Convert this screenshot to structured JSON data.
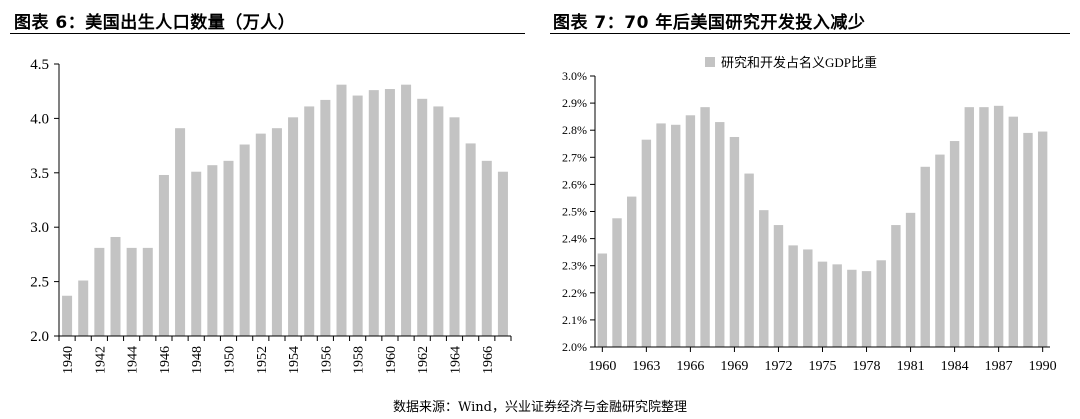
{
  "left_panel": {
    "title": "图表 6：美国出生人口数量（万人）"
  },
  "right_panel": {
    "title": "图表 7：70 年后美国研究开发投入减少"
  },
  "source_note": "数据来源：Wind，兴业证券经济与金融研究院整理",
  "bar_color": "#c3c3c3",
  "chart_data": [
    {
      "type": "bar",
      "title": "",
      "xlabel": "",
      "ylabel": "",
      "ylim": [
        2.0,
        4.5
      ],
      "yticks": [
        "2.0",
        "2.5",
        "3.0",
        "3.5",
        "4.0",
        "4.5"
      ],
      "x": [
        1940,
        1941,
        1942,
        1943,
        1944,
        1945,
        1946,
        1947,
        1948,
        1949,
        1950,
        1951,
        1952,
        1953,
        1954,
        1955,
        1956,
        1957,
        1958,
        1959,
        1960,
        1961,
        1962,
        1963,
        1964,
        1965,
        1966,
        1967
      ],
      "x_tick_labels": [
        "1940",
        "1942",
        "1944",
        "1946",
        "1948",
        "1950",
        "1952",
        "1954",
        "1956",
        "1958",
        "1960",
        "1962",
        "1964",
        "1966"
      ],
      "values": [
        2.37,
        2.51,
        2.81,
        2.91,
        2.81,
        2.81,
        3.48,
        3.91,
        3.51,
        3.57,
        3.61,
        3.76,
        3.86,
        3.91,
        4.01,
        4.11,
        4.17,
        4.31,
        4.21,
        4.26,
        4.27,
        4.31,
        4.18,
        4.11,
        4.01,
        3.77,
        3.61,
        3.51
      ],
      "grid": false,
      "legend": null
    },
    {
      "type": "bar",
      "title": "",
      "xlabel": "",
      "ylabel": "",
      "ylim": [
        2.0,
        3.0
      ],
      "yticks": [
        "2.0%",
        "2.1%",
        "2.2%",
        "2.3%",
        "2.4%",
        "2.5%",
        "2.6%",
        "2.7%",
        "2.8%",
        "2.9%",
        "3.0%"
      ],
      "x": [
        1960,
        1961,
        1962,
        1963,
        1964,
        1965,
        1966,
        1967,
        1968,
        1969,
        1970,
        1971,
        1972,
        1973,
        1974,
        1975,
        1976,
        1977,
        1978,
        1979,
        1980,
        1981,
        1982,
        1983,
        1984,
        1985,
        1986,
        1987,
        1988,
        1989,
        1990
      ],
      "x_tick_labels": [
        "1960",
        "1963",
        "1966",
        "1969",
        "1972",
        "1975",
        "1978",
        "1981",
        "1984",
        "1987",
        "1990"
      ],
      "series": [
        {
          "name": "研究和开发占名义GDP比重",
          "values": [
            2.345,
            2.475,
            2.555,
            2.765,
            2.825,
            2.82,
            2.855,
            2.885,
            2.83,
            2.775,
            2.64,
            2.505,
            2.45,
            2.375,
            2.36,
            2.315,
            2.305,
            2.285,
            2.28,
            2.32,
            2.45,
            2.495,
            2.665,
            2.71,
            2.76,
            2.885,
            2.885,
            2.89,
            2.85,
            2.79,
            2.795
          ]
        }
      ],
      "grid": false,
      "legend": "top"
    }
  ]
}
